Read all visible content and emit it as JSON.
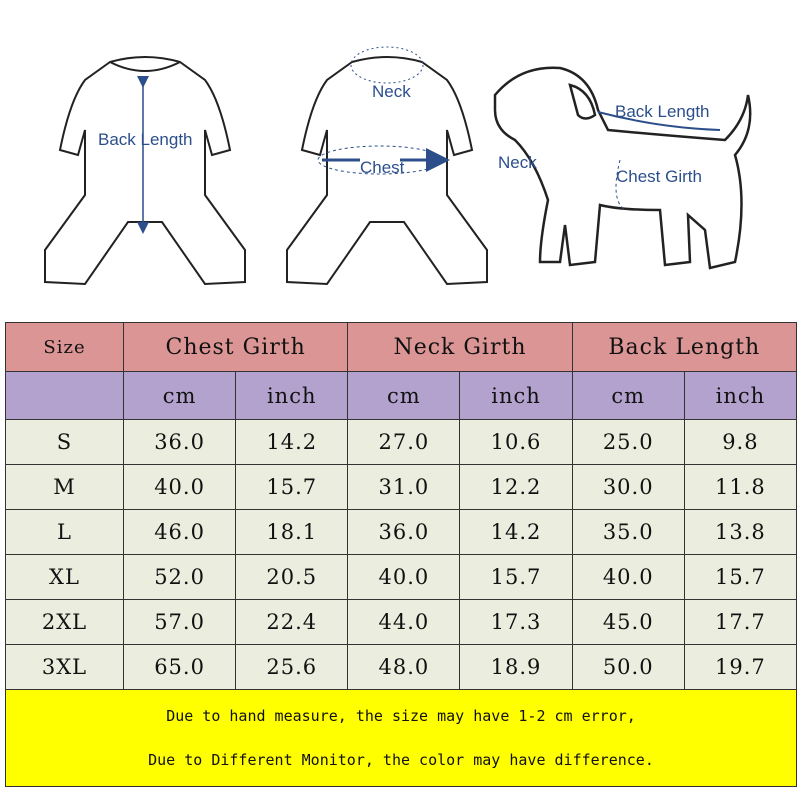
{
  "illustrations": {
    "garment_back_label": "Back Length",
    "garment_front_labels": {
      "neck": "Neck",
      "chest": "Chest"
    },
    "dog_labels": {
      "back_length": "Back Length",
      "neck": "Neck",
      "chest_girth": "Chest Girth"
    },
    "accent_color": "#2c4f8c"
  },
  "table": {
    "header": {
      "size": "Size",
      "groups": [
        "Chest Girth",
        "Neck Girth",
        "Back Length"
      ]
    },
    "units": [
      "cm",
      "inch",
      "cm",
      "inch",
      "cm",
      "inch"
    ],
    "rows": [
      {
        "size": "S",
        "values": [
          "36.0",
          "14.2",
          "27.0",
          "10.6",
          "25.0",
          "9.8"
        ]
      },
      {
        "size": "M",
        "values": [
          "40.0",
          "15.7",
          "31.0",
          "12.2",
          "30.0",
          "11.8"
        ]
      },
      {
        "size": "L",
        "values": [
          "46.0",
          "18.1",
          "36.0",
          "14.2",
          "35.0",
          "13.8"
        ]
      },
      {
        "size": "XL",
        "values": [
          "52.0",
          "20.5",
          "40.0",
          "15.7",
          "40.0",
          "15.7"
        ]
      },
      {
        "size": "2XL",
        "values": [
          "57.0",
          "22.4",
          "44.0",
          "17.3",
          "45.0",
          "17.7"
        ]
      },
      {
        "size": "3XL",
        "values": [
          "65.0",
          "25.6",
          "48.0",
          "18.9",
          "50.0",
          "19.7"
        ]
      }
    ],
    "notes": [
      "Due to hand measure, the size may have 1-2 cm error,",
      "Due to Different Monitor, the color may have difference."
    ],
    "colors": {
      "header": "#dc9595",
      "units": "#b2a2cd",
      "rows": "#ebeedf",
      "note": "#ffff00"
    }
  }
}
